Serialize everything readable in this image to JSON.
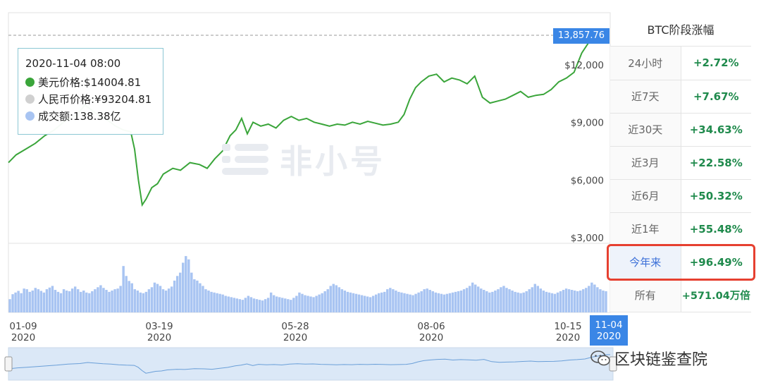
{
  "chart_data": {
    "type": "line",
    "ylim": [
      3000,
      15000
    ],
    "yticks": [
      "$3,000",
      "$6,000",
      "$9,000",
      "$12,000"
    ],
    "ytick_values": [
      3000,
      6000,
      9000,
      12000
    ],
    "current_price_label": "13,857.76",
    "current_price": 13857.76,
    "xtick_labels": [
      {
        "date": "01-09",
        "year": "2020",
        "day": 9
      },
      {
        "date": "03-19",
        "year": "2020",
        "day": 79
      },
      {
        "date": "05-28",
        "year": "2020",
        "day": 149
      },
      {
        "date": "08-06",
        "year": "2020",
        "day": 219
      },
      {
        "date": "10-15",
        "year": "2020",
        "day": 289
      },
      {
        "date": "11-04",
        "year": "2020",
        "day": 309
      }
    ],
    "price_series": {
      "name": "美元价格",
      "points": [
        [
          0,
          7200
        ],
        [
          4,
          7600
        ],
        [
          9,
          7900
        ],
        [
          14,
          8200
        ],
        [
          19,
          8600
        ],
        [
          24,
          8900
        ],
        [
          30,
          9400
        ],
        [
          36,
          9700
        ],
        [
          40,
          10200
        ],
        [
          44,
          9900
        ],
        [
          48,
          9600
        ],
        [
          52,
          9400
        ],
        [
          56,
          9100
        ],
        [
          60,
          8900
        ],
        [
          64,
          8800
        ],
        [
          66,
          7900
        ],
        [
          68,
          6300
        ],
        [
          70,
          5000
        ],
        [
          72,
          5300
        ],
        [
          75,
          5900
        ],
        [
          78,
          6100
        ],
        [
          81,
          6600
        ],
        [
          86,
          6900
        ],
        [
          90,
          6800
        ],
        [
          95,
          7200
        ],
        [
          100,
          7100
        ],
        [
          104,
          6900
        ],
        [
          108,
          7400
        ],
        [
          112,
          7800
        ],
        [
          116,
          8600
        ],
        [
          119,
          8900
        ],
        [
          122,
          9500
        ],
        [
          125,
          8700
        ],
        [
          128,
          9300
        ],
        [
          132,
          9100
        ],
        [
          136,
          9200
        ],
        [
          140,
          9000
        ],
        [
          144,
          9400
        ],
        [
          148,
          9600
        ],
        [
          152,
          9400
        ],
        [
          156,
          9500
        ],
        [
          160,
          9300
        ],
        [
          164,
          9200
        ],
        [
          168,
          9100
        ],
        [
          172,
          9200
        ],
        [
          176,
          9150
        ],
        [
          180,
          9300
        ],
        [
          184,
          9200
        ],
        [
          188,
          9350
        ],
        [
          192,
          9250
        ],
        [
          196,
          9150
        ],
        [
          200,
          9200
        ],
        [
          204,
          9300
        ],
        [
          207,
          9700
        ],
        [
          210,
          10500
        ],
        [
          213,
          11100
        ],
        [
          216,
          11400
        ],
        [
          220,
          11700
        ],
        [
          224,
          11800
        ],
        [
          228,
          11400
        ],
        [
          232,
          11600
        ],
        [
          236,
          11500
        ],
        [
          240,
          11300
        ],
        [
          244,
          11700
        ],
        [
          248,
          10600
        ],
        [
          252,
          10300
        ],
        [
          256,
          10400
        ],
        [
          260,
          10500
        ],
        [
          264,
          10700
        ],
        [
          268,
          10900
        ],
        [
          272,
          10600
        ],
        [
          276,
          10700
        ],
        [
          280,
          10750
        ],
        [
          284,
          11000
        ],
        [
          288,
          11400
        ],
        [
          292,
          11600
        ],
        [
          296,
          11900
        ],
        [
          300,
          12900
        ],
        [
          304,
          13500
        ],
        [
          307,
          14000
        ],
        [
          309,
          14004.81
        ]
      ]
    },
    "volume_series": {
      "name": "成交额",
      "unit": "亿",
      "values": [
        40,
        55,
        60,
        65,
        58,
        72,
        70,
        62,
        66,
        74,
        70,
        65,
        60,
        70,
        75,
        80,
        68,
        62,
        58,
        70,
        66,
        64,
        72,
        78,
        70,
        62,
        66,
        60,
        58,
        64,
        70,
        76,
        82,
        74,
        68,
        62,
        66,
        70,
        72,
        80,
        140,
        110,
        95,
        88,
        70,
        66,
        60,
        58,
        62,
        70,
        76,
        90,
        86,
        80,
        70,
        66,
        72,
        78,
        96,
        110,
        120,
        150,
        170,
        160,
        120,
        100,
        96,
        88,
        80,
        70,
        66,
        62,
        60,
        58,
        56,
        54,
        50,
        48,
        46,
        44,
        42,
        40,
        38,
        44,
        50,
        46,
        42,
        40,
        38,
        36,
        40,
        44,
        60,
        52,
        48,
        46,
        44,
        42,
        40,
        38,
        44,
        50,
        60,
        56,
        52,
        50,
        48,
        46,
        50,
        54,
        58,
        64,
        70,
        80,
        86,
        82,
        76,
        70,
        66,
        62,
        60,
        58,
        56,
        54,
        52,
        50,
        48,
        46,
        50,
        54,
        58,
        60,
        62,
        70,
        74,
        70,
        66,
        62,
        60,
        58,
        56,
        54,
        52,
        56,
        60,
        64,
        70,
        72,
        68,
        64,
        60,
        58,
        56,
        54,
        56,
        58,
        60,
        62,
        64,
        66,
        70,
        74,
        80,
        90,
        84,
        78,
        72,
        68,
        64,
        60,
        62,
        66,
        70,
        76,
        80,
        74,
        70,
        66,
        62,
        60,
        58,
        60,
        64,
        70,
        76,
        86,
        80,
        72,
        66,
        62,
        60,
        58,
        56,
        60,
        64,
        68,
        72,
        70,
        68,
        66,
        64,
        66,
        70,
        74,
        80,
        90,
        84,
        76,
        70,
        66,
        64
      ],
      "ymax": 200,
      "tooltip_value": 138.38
    }
  },
  "tooltip": {
    "time": "2020-11-04 08:00",
    "rows": [
      {
        "label": "美元价格:$14004.81",
        "color": "#3aa53a"
      },
      {
        "label": "人民币价格:¥93204.81",
        "color": "#d0d0d0"
      },
      {
        "label": "成交额:138.38亿",
        "color": "#a8c4f2"
      }
    ]
  },
  "watermark": {
    "text": "非小号"
  },
  "colors": {
    "price_line": "#3aa53a",
    "volume_bar": "#a8c4f2",
    "navigator_line": "#6a9fd8",
    "navigator_fill": "#dbe8f7",
    "accent": "#3a86e6",
    "highlight": "#e64030"
  },
  "side_panel": {
    "title": "BTC阶段涨幅",
    "rows": [
      {
        "label": "24小时",
        "value": "+2.72%"
      },
      {
        "label": "近7天",
        "value": "+7.67%"
      },
      {
        "label": "近30天",
        "value": "+34.63%"
      },
      {
        "label": "近3月",
        "value": "+22.58%"
      },
      {
        "label": "近6月",
        "value": "+50.32%"
      },
      {
        "label": "近1年",
        "value": "+55.48%"
      },
      {
        "label": "今年来",
        "value": "+96.49%",
        "selected": true
      },
      {
        "label": "所有",
        "value": "+571.04万倍"
      }
    ]
  },
  "wechat": {
    "text": "区块链鉴查院",
    "icon": "wechat-icon"
  }
}
